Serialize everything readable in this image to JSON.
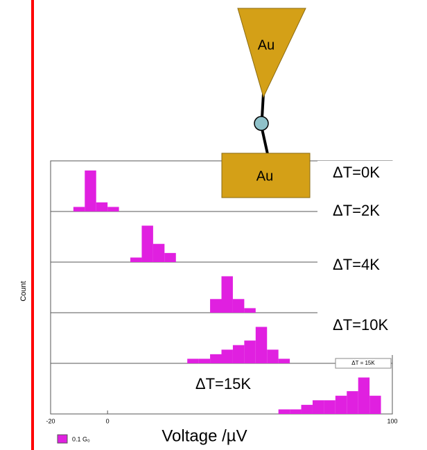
{
  "diagram": {
    "top_label": "Au",
    "bottom_label": "Au"
  },
  "chart_data": {
    "type": "histogram",
    "ylabel": "Count",
    "xlabel": "Voltage /µV",
    "xlim": [
      -20,
      100
    ],
    "xticks": [
      -20,
      0,
      100
    ],
    "ylim": [
      0,
      10
    ],
    "color": "#e020e0",
    "bins": [
      -20,
      -16,
      -12,
      -8,
      -4,
      0,
      4,
      8,
      12,
      16,
      20,
      24,
      28,
      32,
      36,
      40,
      44,
      48,
      52,
      56,
      60,
      64,
      68,
      72,
      76,
      80,
      84,
      88,
      92,
      96,
      100
    ],
    "panels": [
      {
        "label": "ΔT=0K",
        "counts": [
          0,
          0,
          1,
          9,
          2,
          1,
          0,
          0,
          0,
          0,
          0,
          0,
          0,
          0,
          0,
          0,
          0,
          0,
          0,
          0,
          0,
          0,
          0,
          0,
          0,
          0,
          0,
          0,
          0,
          0
        ]
      },
      {
        "label": "ΔT=2K",
        "counts": [
          0,
          0,
          0,
          0,
          0,
          0,
          0,
          1,
          8,
          4,
          2,
          0,
          0,
          0,
          0,
          0,
          0,
          0,
          0,
          0,
          0,
          0,
          0,
          0,
          0,
          0,
          0,
          0,
          0,
          0
        ]
      },
      {
        "label": "ΔT=4K",
        "counts": [
          0,
          0,
          0,
          0,
          0,
          0,
          0,
          0,
          0,
          0,
          0,
          0,
          0,
          0,
          3,
          8,
          3,
          1,
          0,
          0,
          0,
          0,
          0,
          0,
          0,
          0,
          0,
          0,
          0,
          0
        ]
      },
      {
        "label": "ΔT=10K",
        "counts": [
          0,
          0,
          0,
          0,
          0,
          0,
          0,
          0,
          0,
          0,
          0,
          0,
          1,
          1,
          2,
          3,
          4,
          5,
          8,
          3,
          1,
          0,
          0,
          0,
          0,
          0,
          0,
          0,
          0,
          0
        ]
      },
      {
        "label": "ΔT=15K",
        "counts": [
          0,
          0,
          0,
          0,
          0,
          0,
          0,
          0,
          0,
          0,
          0,
          0,
          0,
          0,
          0,
          0,
          0,
          0,
          0,
          0,
          1,
          1,
          2,
          3,
          3,
          4,
          5,
          8,
          4,
          0
        ]
      }
    ],
    "inset_label": "ΔT = 15K",
    "legend": "0.1 G₀"
  }
}
